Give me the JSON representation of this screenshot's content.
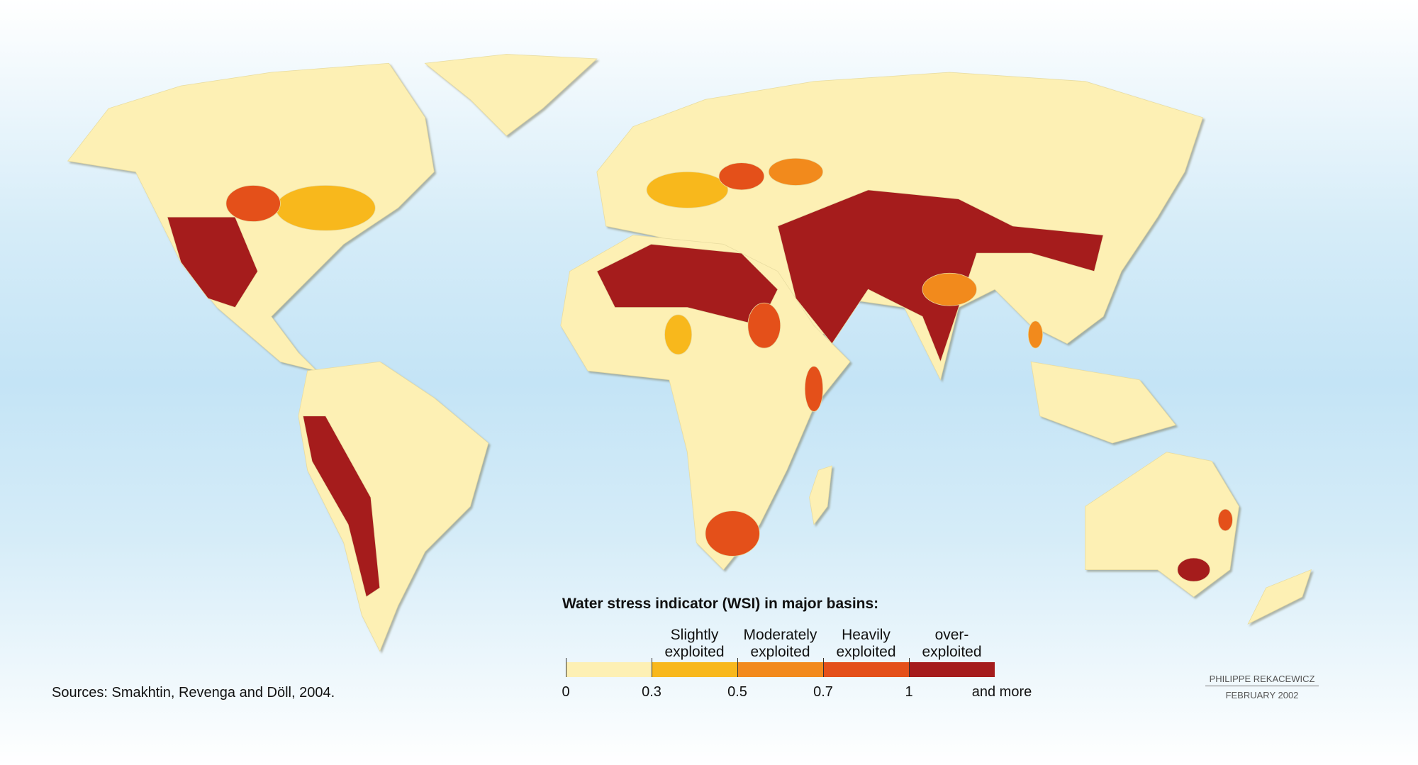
{
  "legend": {
    "title": "Water stress indicator (WSI) in major basins:",
    "classes": [
      {
        "color": "#fdf0b4"
      },
      {
        "label": "Slightly exploited",
        "color": "#f8b81c"
      },
      {
        "label": "Moderately exploited",
        "color": "#f28a1c"
      },
      {
        "label": "Heavily exploited",
        "color": "#e4501a"
      },
      {
        "label": "over-exploited",
        "color": "#a51c1c"
      }
    ],
    "ticks": [
      0,
      0.3,
      0.5,
      0.7,
      1
    ],
    "open_end": "and more"
  },
  "sources": "Sources:  Smakhtin, Revenga and Döll, 2004.",
  "credit": {
    "author": "PHILIPPE REKACEWICZ",
    "date": "FEBRUARY 2002"
  }
}
